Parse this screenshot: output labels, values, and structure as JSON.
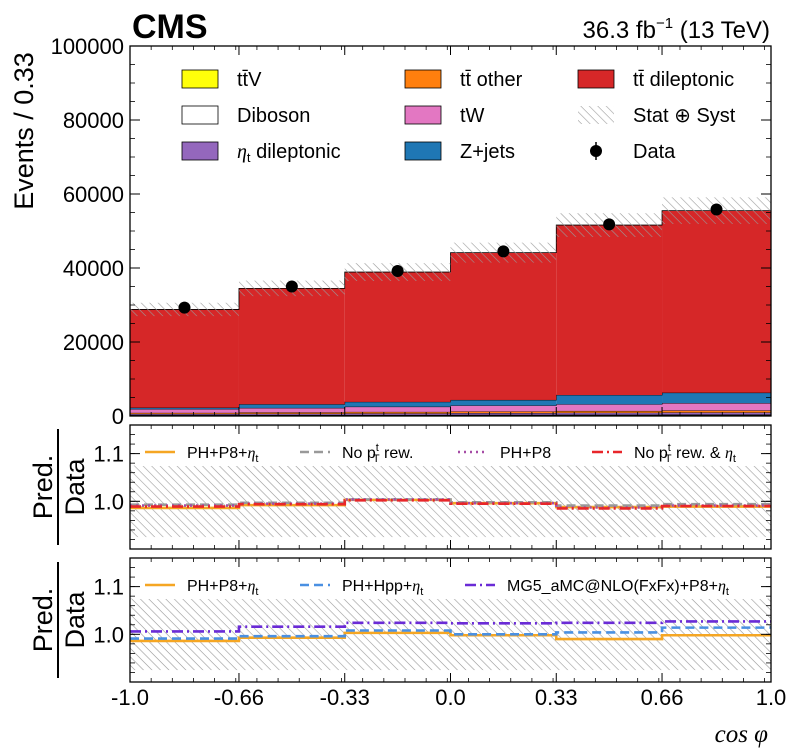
{
  "header": {
    "experiment": "CMS",
    "lumi_prefix": "36.3 fb",
    "lumi_exponent": "−1",
    "lumi_suffix": " (13 TeV)"
  },
  "colors": {
    "ttV": "#ffff0a",
    "tt_other": "#ff7f0e",
    "tt_dileptonic": "#d62728",
    "diboson": "#ffffff",
    "tW": "#e377c2",
    "eta_t": "#9467bd",
    "zjets": "#1f77b4",
    "data": "#000000",
    "ph_p8_eta": "#f5a623",
    "no_pt_rew": "#999999",
    "ph_p8": "#a64ca6",
    "no_pt_rew_eta": "#e8262a",
    "ph_hpp_eta": "#4a90e2",
    "mg5_eta": "#6a2bd6"
  },
  "chart_data": [
    {
      "type": "bar",
      "subtype": "stacked-histogram",
      "xlabel": "cos φ",
      "ylabel": "Events / 0.33",
      "bin_edges": [
        -1.0,
        -0.66,
        -0.33,
        0.0,
        0.33,
        0.66,
        1.0
      ],
      "x_ticks": [
        "-1.0",
        "-0.66",
        "-0.33",
        "0.0",
        "0.33",
        "0.66",
        "1.0"
      ],
      "ylim": [
        0,
        100000
      ],
      "y_ticks": [
        "0",
        "20000",
        "40000",
        "60000",
        "80000",
        "100000"
      ],
      "series": [
        {
          "name": "tt̄V",
          "key": "ttV",
          "values": [
            150,
            170,
            190,
            210,
            230,
            250
          ]
        },
        {
          "name": "Diboson",
          "key": "diboson",
          "values": [
            100,
            110,
            120,
            130,
            140,
            150
          ]
        },
        {
          "name": "ηt dileptonic",
          "key": "eta_t",
          "values": [
            300,
            350,
            400,
            450,
            500,
            550
          ]
        },
        {
          "name": "tt̄ other",
          "key": "tt_other",
          "values": [
            300,
            350,
            400,
            450,
            500,
            550
          ]
        },
        {
          "name": "tW",
          "key": "tW",
          "values": [
            1000,
            1200,
            1400,
            1600,
            1800,
            2000
          ]
        },
        {
          "name": "Z+jets",
          "key": "zjets",
          "values": [
            400,
            1000,
            1300,
            1500,
            2500,
            2800
          ]
        },
        {
          "name": "tt̄ dileptonic",
          "key": "tt_dileptonic",
          "values": [
            26550,
            31320,
            35090,
            39810,
            45930,
            49200
          ]
        }
      ],
      "stat_syst_half_width": [
        1800,
        2100,
        2400,
        2700,
        3200,
        3600
      ],
      "data": {
        "name": "Data",
        "x": [
          -0.83,
          -0.495,
          -0.165,
          0.165,
          0.495,
          0.83
        ],
        "y": [
          29300,
          35000,
          39200,
          44500,
          51800,
          55800
        ]
      },
      "legend": [
        {
          "label": "tt̄V",
          "key": "ttV",
          "kind": "fill"
        },
        {
          "label": "tt̄ other",
          "key": "tt_other",
          "kind": "fill"
        },
        {
          "label": "tt̄ dileptonic",
          "key": "tt_dileptonic",
          "kind": "fill"
        },
        {
          "label": "Diboson",
          "key": "diboson",
          "kind": "fill"
        },
        {
          "label": "tW",
          "key": "tW",
          "kind": "fill"
        },
        {
          "label": "Stat ⊕ Syst",
          "key": "stat_syst",
          "kind": "hatch"
        },
        {
          "label": "ηt dileptonic",
          "key": "eta_t",
          "kind": "fill"
        },
        {
          "label": "Z+jets",
          "key": "zjets",
          "kind": "fill"
        },
        {
          "label": "Data",
          "key": "data",
          "kind": "marker"
        }
      ]
    },
    {
      "type": "line",
      "subtype": "ratio",
      "ylabel_num": "Pred.",
      "ylabel_den": "Data",
      "ylim": [
        0.9,
        1.16
      ],
      "y_ticks": [
        "1.0",
        "1.1"
      ],
      "band": {
        "lo": [
          0.925,
          0.925,
          0.925,
          0.925,
          0.925,
          0.925
        ],
        "hi": [
          1.075,
          1.075,
          1.075,
          1.075,
          1.075,
          1.075
        ]
      },
      "series": [
        {
          "name": "PH+P8+ηt",
          "key": "ph_p8_eta",
          "dash": "solid",
          "values": [
            0.986,
            0.992,
            1.003,
            0.996,
            0.988,
            0.989
          ]
        },
        {
          "name": "No pTt rew.",
          "key": "no_pt_rew",
          "dash": "dashed",
          "values": [
            0.993,
            0.997,
            1.004,
            0.998,
            0.991,
            0.994
          ]
        },
        {
          "name": "PH+P8",
          "key": "ph_p8",
          "dash": "dotted",
          "values": [
            0.991,
            0.995,
            1.004,
            0.996,
            0.987,
            0.991
          ]
        },
        {
          "name": "No pTt rew. & ηt",
          "key": "no_pt_rew_eta",
          "dash": "dashdot",
          "values": [
            0.989,
            0.994,
            1.002,
            0.995,
            0.985,
            0.99
          ]
        }
      ],
      "legend": [
        {
          "label": "PH+P8+",
          "eta": "ηt",
          "key": "ph_p8_eta",
          "dash": "solid"
        },
        {
          "label": "No p",
          "sup": "t",
          "sub": "T",
          "tail": " rew.",
          "key": "no_pt_rew",
          "dash": "dashed"
        },
        {
          "label": "PH+P8",
          "key": "ph_p8",
          "dash": "dotted"
        },
        {
          "label": "No p",
          "sup": "t",
          "sub": "T",
          "tail": " rew. & ",
          "eta": "ηt",
          "key": "no_pt_rew_eta",
          "dash": "dashdot"
        }
      ]
    },
    {
      "type": "line",
      "subtype": "ratio",
      "ylabel_num": "Pred.",
      "ylabel_den": "Data",
      "xlabel": "cos φ",
      "ylim": [
        0.9,
        1.16
      ],
      "y_ticks": [
        "1.0",
        "1.1"
      ],
      "band": {
        "lo": [
          0.925,
          0.925,
          0.925,
          0.925,
          0.925,
          0.925
        ],
        "hi": [
          1.075,
          1.075,
          1.075,
          1.075,
          1.075,
          1.075
        ]
      },
      "series": [
        {
          "name": "PH+P8+ηt",
          "key": "ph_p8_eta",
          "dash": "solid",
          "values": [
            0.986,
            0.993,
            1.003,
            0.998,
            0.99,
            0.998
          ]
        },
        {
          "name": "PH+Hpp+ηt",
          "key": "ph_hpp_eta",
          "dash": "dashed",
          "values": [
            0.991,
            0.996,
            1.008,
            1.0,
            1.004,
            1.014
          ]
        },
        {
          "name": "MG5_aMC@NLO(FxFx)+P8+ηt",
          "key": "mg5_eta",
          "dash": "dashdot",
          "values": [
            1.006,
            1.016,
            1.024,
            1.023,
            1.024,
            1.027
          ]
        }
      ],
      "legend": [
        {
          "label": "PH+P8+",
          "eta": "ηt",
          "key": "ph_p8_eta",
          "dash": "solid"
        },
        {
          "label": "PH+Hpp+",
          "eta": "ηt",
          "key": "ph_hpp_eta",
          "dash": "dashed"
        },
        {
          "label": "MG5_aMC@NLO(FxFx)+P8+",
          "eta": "ηt",
          "key": "mg5_eta",
          "dash": "dashdot"
        }
      ]
    }
  ]
}
